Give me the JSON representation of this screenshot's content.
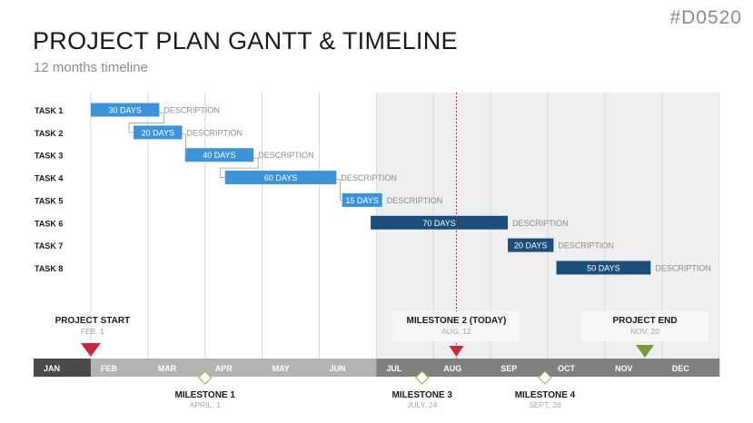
{
  "header": {
    "code": "#D0520",
    "title": "PROJECT PLAN GANTT & TIMELINE",
    "subtitle": "12 months timeline"
  },
  "colors": {
    "light_blue": "#3b94da",
    "dark_blue": "#1b4e7a",
    "shade": "#efefef",
    "axis_past": "#b3b3b3",
    "axis_future": "#808080",
    "axis_first": "#4a4a4a",
    "today_line": "#c0203a",
    "start_marker": "#c8283c",
    "end_marker": "#7a9a3a"
  },
  "chart_data": {
    "type": "gantt",
    "months": [
      "JAN",
      "FEB",
      "MAR",
      "APR",
      "MAY",
      "JUN",
      "JUL",
      "AUG",
      "SEP",
      "OCT",
      "NOV",
      "DEC"
    ],
    "shaded_from_month": "JUL",
    "today": "AUG, 12",
    "tasks": [
      {
        "name": "TASK 1",
        "start": 1.0,
        "end": 2.2,
        "label": "30 DAYS",
        "description": "DESCRIPTION",
        "color": "light"
      },
      {
        "name": "TASK 2",
        "start": 1.75,
        "end": 2.6,
        "label": "20 DAYS",
        "description": "DESCRIPTION",
        "color": "light"
      },
      {
        "name": "TASK 3",
        "start": 2.65,
        "end": 3.85,
        "label": "40 DAYS",
        "description": "DESCRIPTION",
        "color": "light"
      },
      {
        "name": "TASK 4",
        "start": 3.35,
        "end": 5.3,
        "label": "60 DAYS",
        "description": "DESCRIPTION",
        "color": "light"
      },
      {
        "name": "TASK 5",
        "start": 5.4,
        "end": 6.1,
        "label": "15 DAYS",
        "description": "DESCRIPTION",
        "color": "light"
      },
      {
        "name": "TASK 6",
        "start": 5.9,
        "end": 8.3,
        "label": "70 DAYS",
        "description": "DESCRIPTION",
        "color": "dark"
      },
      {
        "name": "TASK 7",
        "start": 8.3,
        "end": 9.1,
        "label": "20 DAYS",
        "description": "DESCRIPTION",
        "color": "dark"
      },
      {
        "name": "TASK 8",
        "start": 9.15,
        "end": 10.8,
        "label": "50 DAYS",
        "description": "DESCRIPTION",
        "color": "dark"
      }
    ],
    "milestones_top": [
      {
        "title": "PROJECT START",
        "date": "FEB, 1",
        "month_pos": 1.0,
        "marker": "start",
        "boxed": false
      },
      {
        "title": "MILESTONE 2 (TODAY)",
        "date": "AUG, 12",
        "month_pos": 7.4,
        "marker": "today",
        "boxed": true
      },
      {
        "title": "PROJECT END",
        "date": "NOV, 20",
        "month_pos": 10.7,
        "marker": "end",
        "boxed": true
      }
    ],
    "milestones_bottom": [
      {
        "title": "MILESTONE 1",
        "date": "APRIL, 1",
        "month_pos": 3.0
      },
      {
        "title": "MILESTONE 3",
        "date": "JULY, 24",
        "month_pos": 6.8
      },
      {
        "title": "MILESTONE 4",
        "date": "SEPT, 28",
        "month_pos": 8.95
      }
    ]
  }
}
